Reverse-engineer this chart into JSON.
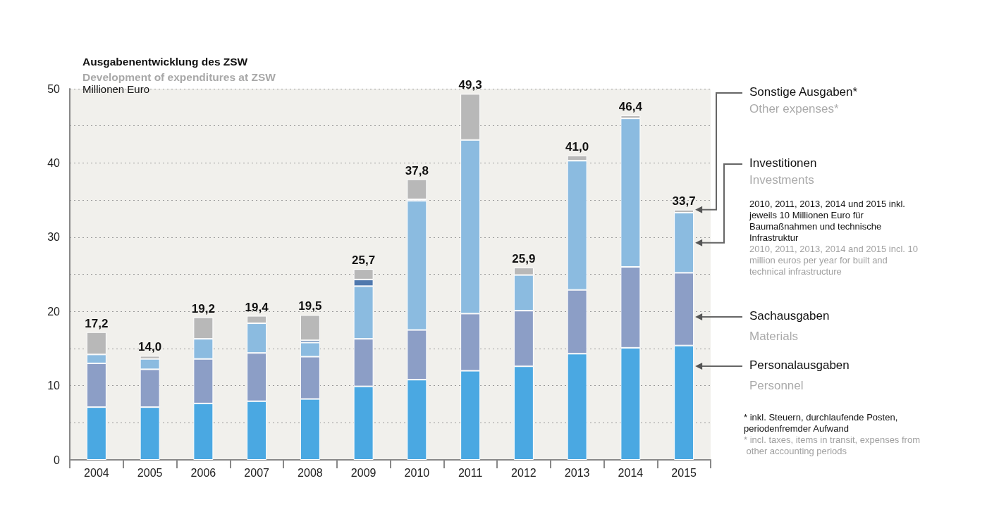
{
  "chart_data": {
    "type": "bar",
    "stacked": true,
    "title": "Ausgabenentwicklung des ZSW",
    "subtitle": "Development of expenditures at ZSW",
    "ylabel": "Millionen Euro",
    "categories": [
      "2004",
      "2005",
      "2006",
      "2007",
      "2008",
      "2009",
      "2010",
      "2011",
      "2012",
      "2013",
      "2014",
      "2015"
    ],
    "series": [
      {
        "name": "Personalausgaben",
        "color": "#4aa8e2",
        "values": [
          7.1,
          7.1,
          7.6,
          7.9,
          8.2,
          9.9,
          10.8,
          12.0,
          12.6,
          14.3,
          15.1,
          15.4
        ]
      },
      {
        "name": "Sachausgaben",
        "color": "#8c9ec6",
        "values": [
          5.9,
          5.1,
          6.0,
          6.5,
          5.7,
          6.4,
          6.7,
          7.7,
          7.5,
          8.6,
          10.9,
          9.8
        ]
      },
      {
        "name": "Investitionen",
        "color": "#8bbbe0",
        "values": [
          1.2,
          1.4,
          2.7,
          4.0,
          1.9,
          7.1,
          17.4,
          23.4,
          4.8,
          17.4,
          20.0,
          8.1
        ]
      },
      {
        "color": "#4f78ad",
        "values": [
          null,
          null,
          null,
          null,
          0.3,
          0.9,
          0.2,
          null,
          null,
          null,
          null,
          null
        ]
      },
      {
        "name": "Sonstige Ausgaben*",
        "color": "#b8b8b8",
        "values": [
          3.0,
          0.4,
          2.9,
          1.0,
          3.4,
          1.4,
          2.7,
          6.2,
          1.0,
          0.7,
          0.4,
          0.4
        ]
      }
    ],
    "totals": [
      "17,2",
      "14,0",
      "19,2",
      "19,4",
      "19,5",
      "25,7",
      "37,8",
      "49,3",
      "25,9",
      "41,0",
      "46,4",
      "33,7"
    ],
    "ylim": [
      0,
      50
    ],
    "yticks": [
      0,
      {
        "value": 5,
        "label": null
      },
      10,
      {
        "value": 15,
        "label": null
      },
      20,
      {
        "value": 25,
        "label": null
      },
      30,
      {
        "value": 35,
        "label": null
      },
      40,
      {
        "value": 45,
        "label": null
      },
      50
    ],
    "grid": "y",
    "legend": false,
    "annotations": [
      "Other expenses*",
      "Investments",
      "2010, 2011, 2013, 2014 und 2015 inkl. jeweils 10 Millionen Euro für Baumaßnahmen und technische Infrastruktur",
      "2010, 2011, 2013, 2014 and 2015 incl. 10 million euros per year for built and technical infrastructure",
      "Materials",
      "Personnel",
      "* inkl. Steuern, durchlaufende Posten, periodenfremder Aufwand",
      "* incl. taxes, items in transit, expenses from other accounting periods"
    ]
  }
}
